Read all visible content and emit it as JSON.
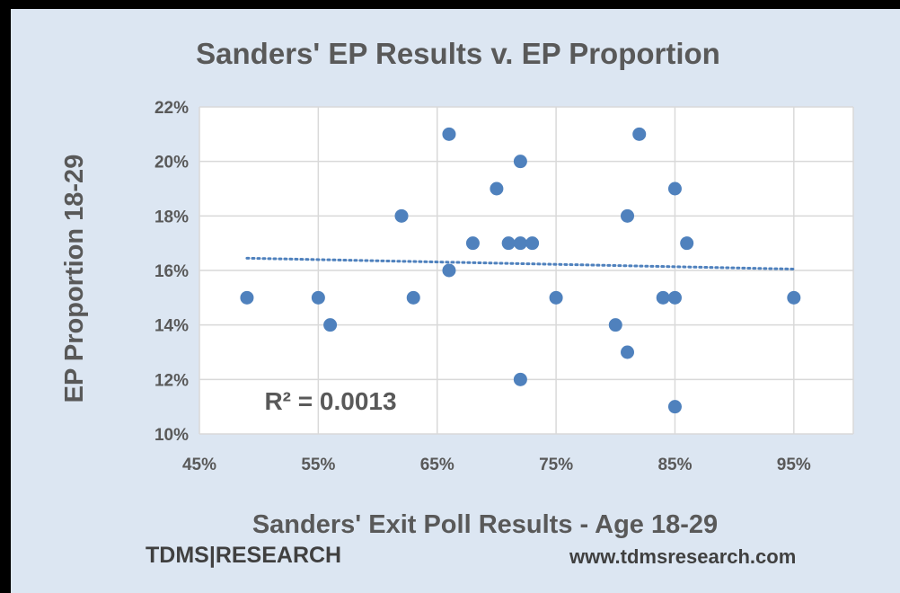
{
  "chart_data": {
    "type": "scatter",
    "title": "Sanders' EP Results v. EP Proportion",
    "xlabel": "Sanders' Exit Poll Results - Age 18-29",
    "ylabel": "EP Proportion 18-29",
    "xlim": [
      0.45,
      1.0
    ],
    "ylim": [
      0.1,
      0.22
    ],
    "x_ticks": [
      0.45,
      0.55,
      0.65,
      0.75,
      0.85,
      0.95
    ],
    "x_tick_labels": [
      "45%",
      "55%",
      "65%",
      "75%",
      "85%",
      "95%"
    ],
    "y_ticks": [
      0.1,
      0.12,
      0.14,
      0.16,
      0.18,
      0.2,
      0.22
    ],
    "y_tick_labels": [
      "10%",
      "12%",
      "14%",
      "16%",
      "18%",
      "20%",
      "22%"
    ],
    "grid": true,
    "point_color": "#4f81bd",
    "points": [
      {
        "x": 0.49,
        "y": 0.15
      },
      {
        "x": 0.55,
        "y": 0.15
      },
      {
        "x": 0.56,
        "y": 0.14
      },
      {
        "x": 0.62,
        "y": 0.18
      },
      {
        "x": 0.63,
        "y": 0.15
      },
      {
        "x": 0.66,
        "y": 0.21
      },
      {
        "x": 0.66,
        "y": 0.16
      },
      {
        "x": 0.68,
        "y": 0.17
      },
      {
        "x": 0.7,
        "y": 0.19
      },
      {
        "x": 0.71,
        "y": 0.17
      },
      {
        "x": 0.72,
        "y": 0.17
      },
      {
        "x": 0.72,
        "y": 0.2
      },
      {
        "x": 0.72,
        "y": 0.12
      },
      {
        "x": 0.73,
        "y": 0.17
      },
      {
        "x": 0.75,
        "y": 0.15
      },
      {
        "x": 0.8,
        "y": 0.14
      },
      {
        "x": 0.81,
        "y": 0.18
      },
      {
        "x": 0.81,
        "y": 0.13
      },
      {
        "x": 0.82,
        "y": 0.21
      },
      {
        "x": 0.84,
        "y": 0.15
      },
      {
        "x": 0.85,
        "y": 0.19
      },
      {
        "x": 0.85,
        "y": 0.15
      },
      {
        "x": 0.85,
        "y": 0.11
      },
      {
        "x": 0.86,
        "y": 0.17
      },
      {
        "x": 0.95,
        "y": 0.15
      }
    ],
    "trendline": {
      "type": "linear",
      "style": "dotted",
      "x_range": [
        0.49,
        0.95
      ],
      "y_values": [
        0.1645,
        0.1605
      ]
    },
    "annotation": "R² = 0.0013"
  },
  "footer": {
    "brand": "TDMS|RESEARCH",
    "url": "www.tdmsresearch.com"
  }
}
